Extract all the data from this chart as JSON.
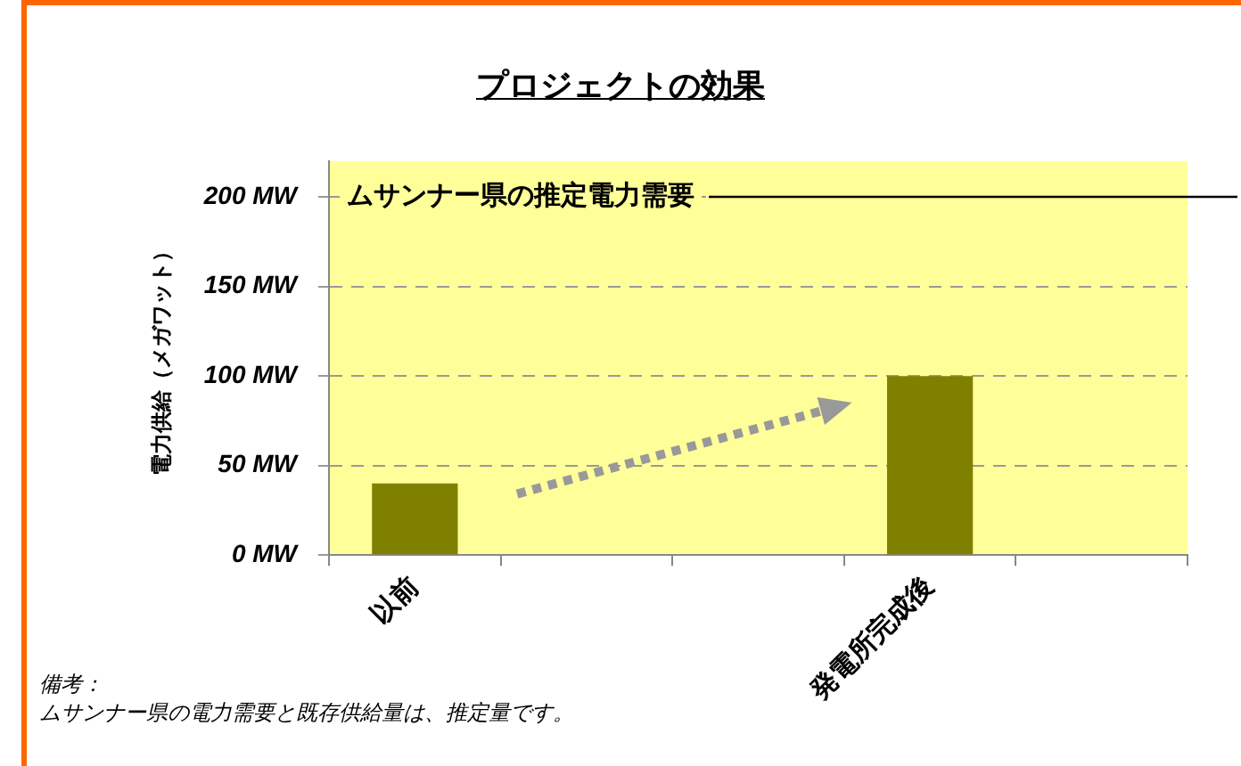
{
  "chart_data": {
    "type": "bar",
    "title": "プロジェクトの効果",
    "ylabel": "電力供給（メガワット）",
    "categories": [
      "以前",
      null,
      null,
      "発電所完成後",
      null
    ],
    "values": [
      40,
      null,
      null,
      100,
      null
    ],
    "color": "#808000",
    "ylim": [
      0,
      220
    ],
    "yticks": [
      {
        "value": 0,
        "label": "0 MW"
      },
      {
        "value": 50,
        "label": "50 MW"
      },
      {
        "value": 100,
        "label": "100 MW"
      },
      {
        "value": 150,
        "label": "150 MW"
      },
      {
        "value": 200,
        "label": "200 MW"
      }
    ],
    "grid": "y",
    "ref_lines": [
      {
        "axis": "y",
        "value": 200,
        "label": "ムサンナー県の推定電力需要",
        "color": "#000000",
        "line_style": "solid"
      }
    ],
    "annotations": [
      "備考：",
      "ムサンナー県の電力需要と既存供給量は、推定量です。"
    ]
  }
}
